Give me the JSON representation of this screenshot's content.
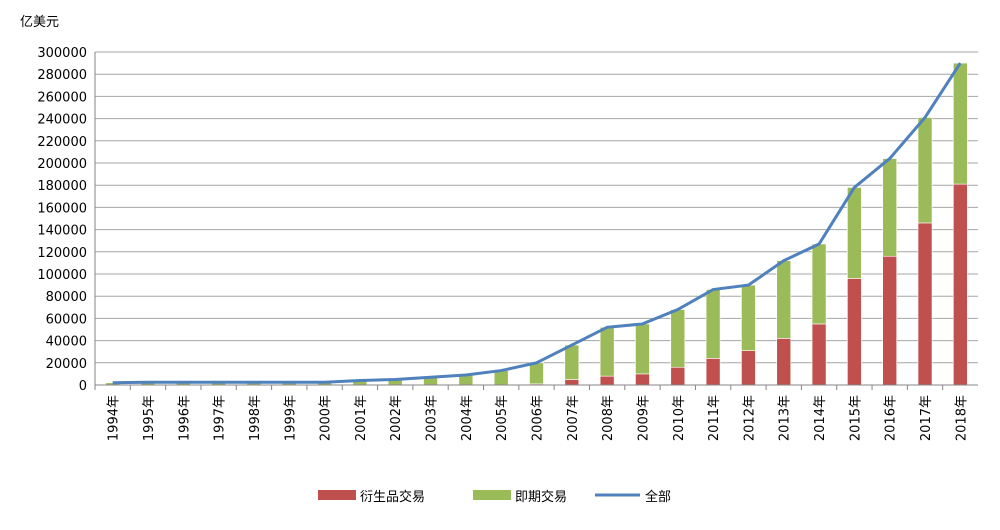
{
  "chart_data": {
    "type": "bar",
    "stacked": true,
    "y_label": "亿美元",
    "categories": [
      "1994年",
      "1995年",
      "1996年",
      "1997年",
      "1998年",
      "1999年",
      "2000年",
      "2001年",
      "2002年",
      "2003年",
      "2004年",
      "2005年",
      "2006年",
      "2007年",
      "2008年",
      "2009年",
      "2010年",
      "2011年",
      "2012年",
      "2013年",
      "2014年",
      "2015年",
      "2016年",
      "2017年",
      "2018年"
    ],
    "series": [
      {
        "name": "衍生品交易",
        "type": "bar",
        "color": "#c0504d",
        "values": [
          0,
          0,
          0,
          0,
          0,
          0,
          0,
          0,
          0,
          0,
          0,
          0,
          1000,
          5000,
          8000,
          10000,
          16000,
          24000,
          31000,
          42000,
          55000,
          96000,
          116000,
          146000,
          181000
        ]
      },
      {
        "name": "即期交易",
        "type": "bar",
        "color": "#9bbb59",
        "values": [
          2000,
          2500,
          2500,
          2500,
          2500,
          2500,
          2500,
          4000,
          5000,
          7000,
          9000,
          13000,
          19000,
          31000,
          44000,
          45000,
          52000,
          62000,
          59000,
          70000,
          72000,
          82000,
          88000,
          95000,
          109000
        ]
      },
      {
        "name": "全部",
        "type": "line",
        "color": "#4f81bd",
        "values": [
          2000,
          2500,
          2500,
          2500,
          2500,
          2500,
          2500,
          4000,
          5000,
          7000,
          9000,
          13000,
          20000,
          36000,
          52000,
          55000,
          68000,
          86000,
          90000,
          112000,
          127000,
          178000,
          204000,
          241000,
          290000
        ]
      }
    ],
    "ylim": [
      0,
      300000
    ],
    "yticks": [
      0,
      20000,
      40000,
      60000,
      80000,
      100000,
      120000,
      140000,
      160000,
      180000,
      200000,
      220000,
      240000,
      260000,
      280000,
      300000
    ],
    "grid": true
  }
}
